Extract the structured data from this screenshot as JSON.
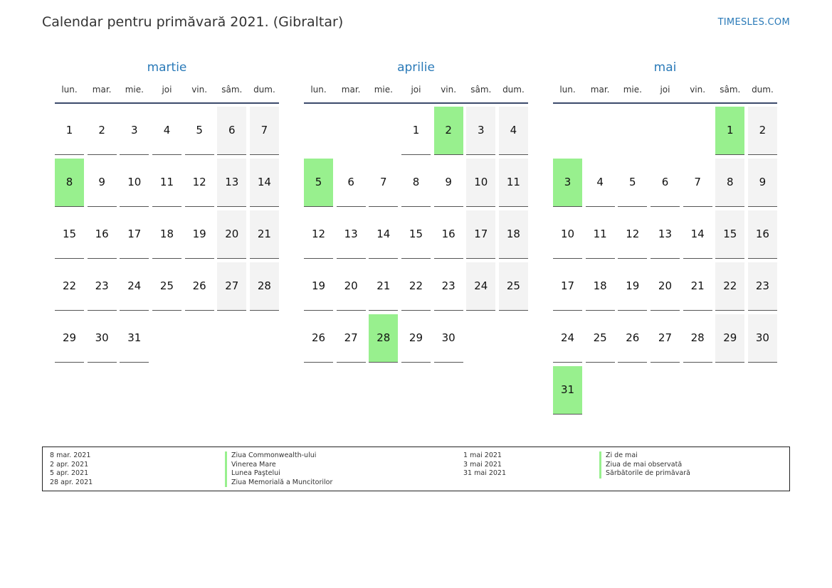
{
  "header": {
    "title": "Calendar pentru primăvară 2021. (Gibraltar)",
    "brand": "TIMESLES.COM"
  },
  "weekdays": [
    "lun.",
    "mar.",
    "mie.",
    "joi",
    "vin.",
    "sâm.",
    "dum."
  ],
  "months": [
    {
      "name": "martie",
      "weeks": [
        [
          "1",
          "2",
          "3",
          "4",
          "5",
          "6",
          "7"
        ],
        [
          "8",
          "9",
          "10",
          "11",
          "12",
          "13",
          "14"
        ],
        [
          "15",
          "16",
          "17",
          "18",
          "19",
          "20",
          "21"
        ],
        [
          "22",
          "23",
          "24",
          "25",
          "26",
          "27",
          "28"
        ],
        [
          "29",
          "30",
          "31",
          "",
          "",
          "",
          ""
        ]
      ],
      "holidays": [
        "8"
      ]
    },
    {
      "name": "aprilie",
      "weeks": [
        [
          "",
          "",
          "",
          "1",
          "2",
          "3",
          "4"
        ],
        [
          "5",
          "6",
          "7",
          "8",
          "9",
          "10",
          "11"
        ],
        [
          "12",
          "13",
          "14",
          "15",
          "16",
          "17",
          "18"
        ],
        [
          "19",
          "20",
          "21",
          "22",
          "23",
          "24",
          "25"
        ],
        [
          "26",
          "27",
          "28",
          "29",
          "30",
          "",
          ""
        ]
      ],
      "holidays": [
        "2",
        "5",
        "28"
      ]
    },
    {
      "name": "mai",
      "weeks": [
        [
          "",
          "",
          "",
          "",
          "",
          "1",
          "2"
        ],
        [
          "3",
          "4",
          "5",
          "6",
          "7",
          "8",
          "9"
        ],
        [
          "10",
          "11",
          "12",
          "13",
          "14",
          "15",
          "16"
        ],
        [
          "17",
          "18",
          "19",
          "20",
          "21",
          "22",
          "23"
        ],
        [
          "24",
          "25",
          "26",
          "27",
          "28",
          "29",
          "30"
        ],
        [
          "31",
          "",
          "",
          "",
          "",
          "",
          ""
        ]
      ],
      "holidays": [
        "1",
        "3",
        "31"
      ]
    }
  ],
  "legend": {
    "left": [
      {
        "date": "8 mar. 2021",
        "name": "Ziua Commonwealth-ului"
      },
      {
        "date": "2 apr. 2021",
        "name": "Vinerea Mare"
      },
      {
        "date": "5 apr. 2021",
        "name": "Lunea Paştelui"
      },
      {
        "date": "28 apr. 2021",
        "name": "Ziua Memorială a Muncitorilor"
      }
    ],
    "right": [
      {
        "date": "1 mai 2021",
        "name": "Zi de mai"
      },
      {
        "date": "3 mai 2021",
        "name": "Ziua de mai observată"
      },
      {
        "date": "31 mai 2021",
        "name": "Sărbătorile de primăvară"
      }
    ]
  },
  "colors": {
    "holiday": "#98f08e",
    "weekend": "#f3f3f3",
    "accent": "#2a7ab8",
    "rule": "#3b4a6b"
  }
}
